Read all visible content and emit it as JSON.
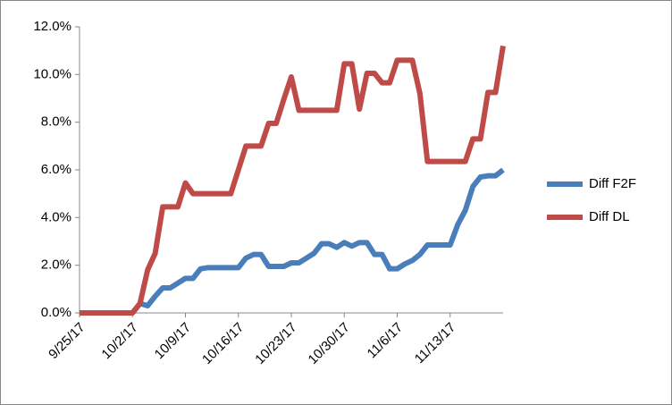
{
  "chart_data": {
    "type": "line",
    "x": [
      "9/25/17",
      "9/26/17",
      "9/27/17",
      "9/28/17",
      "9/29/17",
      "9/30/17",
      "10/1/17",
      "10/2/17",
      "10/3/17",
      "10/4/17",
      "10/5/17",
      "10/6/17",
      "10/7/17",
      "10/8/17",
      "10/9/17",
      "10/10/17",
      "10/11/17",
      "10/12/17",
      "10/13/17",
      "10/14/17",
      "10/15/17",
      "10/16/17",
      "10/17/17",
      "10/18/17",
      "10/19/17",
      "10/20/17",
      "10/21/17",
      "10/22/17",
      "10/23/17",
      "10/24/17",
      "10/25/17",
      "10/26/17",
      "10/27/17",
      "10/28/17",
      "10/29/17",
      "10/30/17",
      "10/31/17",
      "11/1/17",
      "11/2/17",
      "11/3/17",
      "11/4/17",
      "11/5/17",
      "11/6/17",
      "11/7/17",
      "11/8/17",
      "11/9/17",
      "11/10/17",
      "11/11/17",
      "11/12/17",
      "11/13/17",
      "11/14/17",
      "11/15/17",
      "11/16/17",
      "11/17/17",
      "11/18/17",
      "11/19/17",
      "11/20/17"
    ],
    "series": [
      {
        "name": "Diff F2F",
        "color": "#4a7ebb",
        "values": [
          0,
          0,
          0,
          0,
          0,
          0,
          0,
          0,
          0.4,
          0.3,
          0.7,
          1.05,
          1.05,
          1.25,
          1.45,
          1.45,
          1.85,
          1.9,
          1.9,
          1.9,
          1.9,
          1.9,
          2.3,
          2.45,
          2.45,
          1.95,
          1.95,
          1.95,
          2.1,
          2.1,
          2.3,
          2.5,
          2.9,
          2.9,
          2.75,
          2.95,
          2.8,
          2.95,
          2.95,
          2.45,
          2.45,
          1.85,
          1.85,
          2.05,
          2.2,
          2.45,
          2.85,
          2.85,
          2.85,
          2.85,
          3.7,
          4.3,
          5.3,
          5.7,
          5.75,
          5.75,
          6.0
        ]
      },
      {
        "name": "Diff DL",
        "color": "#be4b48",
        "values": [
          0,
          0,
          0,
          0,
          0,
          0,
          0,
          0,
          0.4,
          1.8,
          2.5,
          4.45,
          4.45,
          4.45,
          5.45,
          5.0,
          5.0,
          5.0,
          5.0,
          5.0,
          5.0,
          6.0,
          7.0,
          7.0,
          7.0,
          7.95,
          7.95,
          8.95,
          9.9,
          8.5,
          8.5,
          8.5,
          8.5,
          8.5,
          8.5,
          10.45,
          10.45,
          8.55,
          10.05,
          10.05,
          9.65,
          9.65,
          10.6,
          10.6,
          10.6,
          9.2,
          6.35,
          6.35,
          6.35,
          6.35,
          6.35,
          6.35,
          7.3,
          7.3,
          9.25,
          9.25,
          11.2
        ]
      }
    ],
    "xticks": [
      "9/25/17",
      "10/2/17",
      "10/9/17",
      "10/16/17",
      "10/23/17",
      "10/30/17",
      "11/6/17",
      "11/13/17"
    ],
    "ylim": [
      0,
      12
    ],
    "yticks": [
      {
        "value": 0,
        "label": "0.0%"
      },
      {
        "value": 2,
        "label": "2.0%"
      },
      {
        "value": 4,
        "label": "4.0%"
      },
      {
        "value": 6,
        "label": "6.0%"
      },
      {
        "value": 8,
        "label": "8.0%"
      },
      {
        "value": 10,
        "label": "10.0%"
      },
      {
        "value": 12,
        "label": "12.0%"
      }
    ],
    "legend": "right"
  }
}
